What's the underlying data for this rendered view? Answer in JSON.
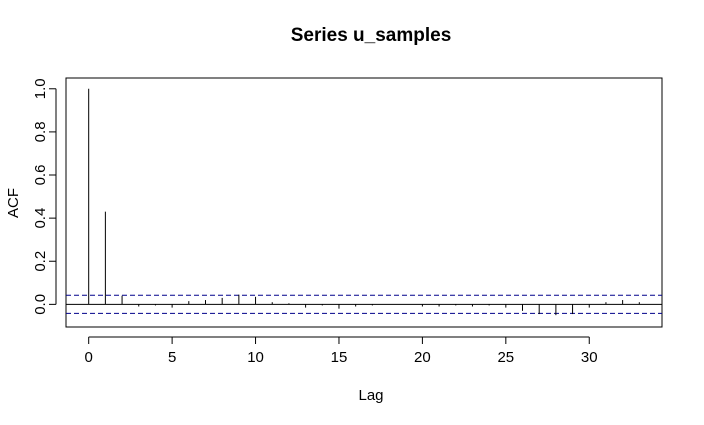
{
  "chart_data": {
    "type": "bar",
    "title": "Series  u_samples",
    "xlabel": "Lag",
    "ylabel": "ACF",
    "xlim": [
      -1.36,
      34.36
    ],
    "ylim": [
      -0.105,
      1.05
    ],
    "x_ticks": [
      0,
      5,
      10,
      15,
      20,
      25,
      30
    ],
    "y_ticks": [
      0.0,
      0.2,
      0.4,
      0.6,
      0.8,
      1.0
    ],
    "y_tick_labels": [
      "0.0",
      "0.2",
      "0.4",
      "0.6",
      "0.8",
      "1.0"
    ],
    "x_tick_labels": [
      "0",
      "5",
      "10",
      "15",
      "20",
      "25",
      "30"
    ],
    "confidence_bound": 0.042,
    "lags": [
      0,
      1,
      2,
      3,
      4,
      5,
      6,
      7,
      8,
      9,
      10,
      11,
      12,
      13,
      14,
      15,
      16,
      17,
      18,
      19,
      20,
      21,
      22,
      23,
      24,
      25,
      26,
      27,
      28,
      29,
      30,
      31,
      32,
      33
    ],
    "acf": [
      1.0,
      0.43,
      0.04,
      -0.01,
      -0.005,
      -0.015,
      0.015,
      0.02,
      0.03,
      0.045,
      0.035,
      0.01,
      0.005,
      -0.015,
      -0.005,
      -0.02,
      -0.01,
      -0.005,
      0.0,
      0.0,
      -0.01,
      -0.01,
      -0.005,
      -0.01,
      -0.005,
      -0.015,
      -0.03,
      -0.045,
      -0.05,
      -0.045,
      -0.015,
      0.01,
      0.02,
      0.01
    ],
    "grid": false,
    "colors": {
      "acf_lines": "#000000",
      "confidence_lines": "#00008B",
      "zero_line": "#000000"
    }
  }
}
